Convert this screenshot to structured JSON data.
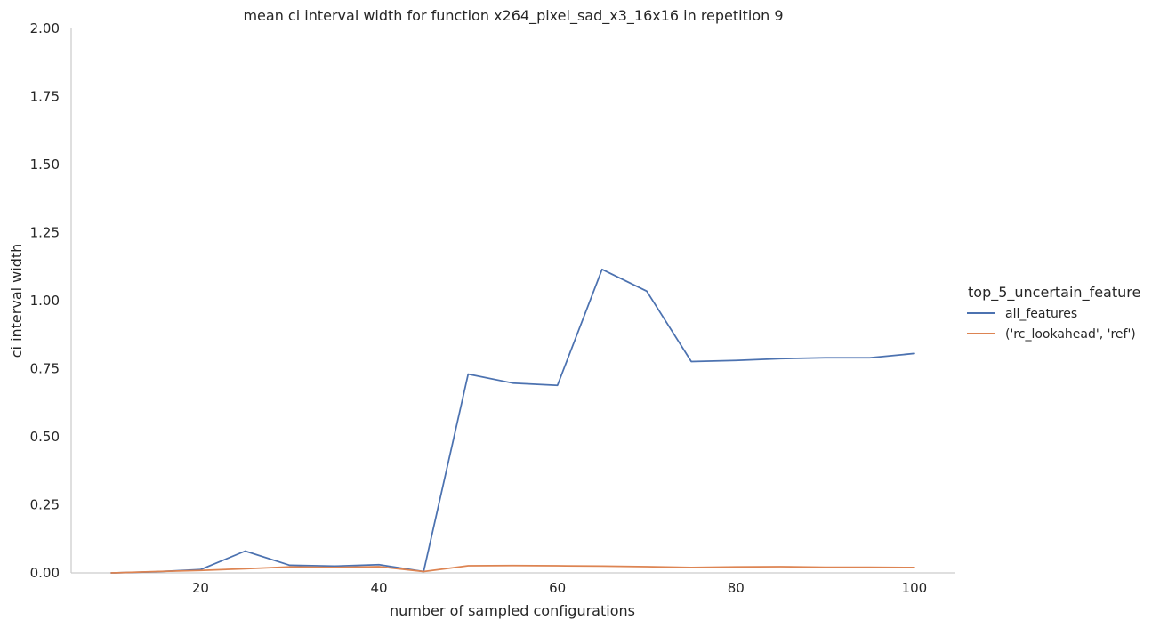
{
  "chart_data": {
    "type": "line",
    "title": "mean ci interval width for function x264_pixel_sad_x3_16x16 in repetition 9",
    "xlabel": "number of sampled configurations",
    "ylabel": "ci interval width",
    "xlim": [
      5.5,
      104.5
    ],
    "ylim": [
      0,
      2.0
    ],
    "xticks": [
      20,
      40,
      60,
      80,
      100
    ],
    "yticks": [
      0.0,
      0.25,
      0.5,
      0.75,
      1.0,
      1.25,
      1.5,
      1.75,
      2.0
    ],
    "x": [
      10,
      15,
      20,
      25,
      30,
      35,
      40,
      45,
      50,
      55,
      60,
      65,
      70,
      75,
      80,
      85,
      90,
      95,
      100
    ],
    "grid": false,
    "legend_position": "right",
    "legend_title": "top_5_uncertain_feature",
    "series": [
      {
        "name": "all_features",
        "color": "#4c72b0",
        "values": [
          0.0,
          0.004,
          0.012,
          0.08,
          0.028,
          0.025,
          0.03,
          0.005,
          0.73,
          0.697,
          0.689,
          1.115,
          1.035,
          0.776,
          0.78,
          0.787,
          0.79,
          0.79,
          0.806
        ]
      },
      {
        "name": "('rc_lookahead', 'ref')",
        "color": "#dd8452",
        "values": [
          0.0,
          0.005,
          0.009,
          0.015,
          0.022,
          0.02,
          0.023,
          0.005,
          0.026,
          0.027,
          0.026,
          0.025,
          0.023,
          0.02,
          0.022,
          0.023,
          0.021,
          0.021,
          0.02
        ]
      }
    ]
  }
}
